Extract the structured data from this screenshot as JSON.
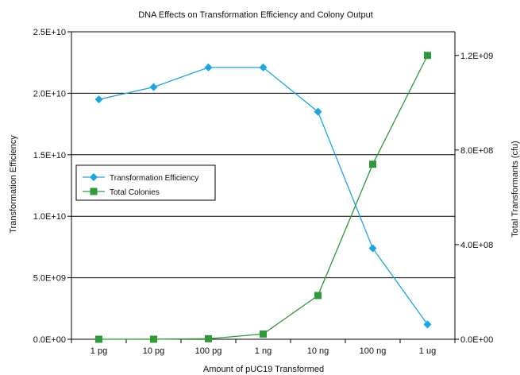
{
  "chart_data": {
    "type": "line",
    "title": "DNA Effects on Transformation Efficiency and Colony Output",
    "xlabel": "Amount of pUC19 Transformed",
    "ylabel": "Transformation Efficiency",
    "y2label": "Total Transformants (cfu)",
    "categories": [
      "1 pg",
      "10 pg",
      "100 pg",
      "1 ng",
      "10 ng",
      "100 ng",
      "1 ug"
    ],
    "ylim": [
      0,
      25000000000
    ],
    "y2lim": [
      0,
      1300000000
    ],
    "yticks": [
      0,
      5000000000,
      10000000000,
      15000000000,
      20000000000,
      25000000000
    ],
    "ytick_labels": [
      "0.0E+00",
      "5.0E+09",
      "1.0E+10",
      "1.5E+10",
      "2.0E+10",
      "2.5E+10"
    ],
    "y2ticks": [
      0,
      400000000,
      800000000,
      1200000000
    ],
    "y2tick_labels": [
      "0.0E+00",
      "4.0E+08",
      "8.0E+08",
      "1.2E+09"
    ],
    "grid": "horizontal major gridlines at primary axis ticks",
    "legend_position": "left-middle",
    "series": [
      {
        "name": "Transformation Efficiency",
        "axis": "primary",
        "marker": "diamond",
        "color": "#1aa7e0",
        "values": [
          19500000000,
          20500000000,
          22100000000,
          22100000000,
          18500000000,
          7400000000,
          1200000000
        ]
      },
      {
        "name": "Total Colonies",
        "axis": "secondary",
        "marker": "square",
        "color": "#2e9a3c",
        "values": [
          19500,
          205000,
          2210000,
          22100000,
          185000000,
          740000000,
          1200000000
        ]
      }
    ]
  }
}
